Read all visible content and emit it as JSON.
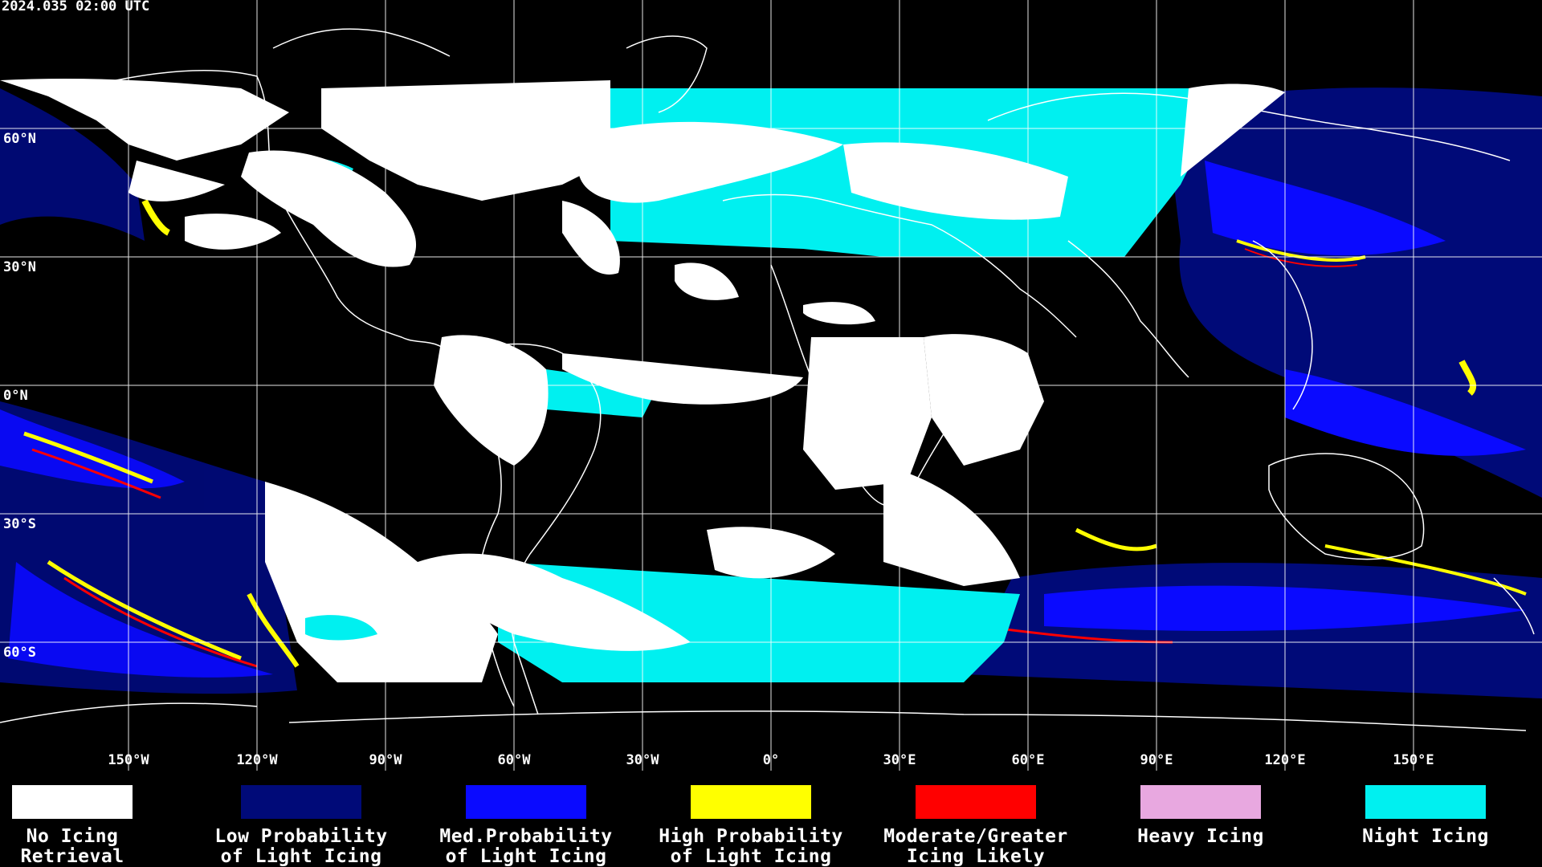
{
  "timestamp": "2024.035 02:00 UTC",
  "lat_labels": [
    "60°N",
    "30°N",
    "0°N",
    "30°S",
    "60°S"
  ],
  "lon_labels": [
    "150°W",
    "120°W",
    "90°W",
    "60°W",
    "30°W",
    "0°",
    "30°E",
    "60°E",
    "90°E",
    "120°E",
    "150°E"
  ],
  "legend": [
    {
      "line1": "No Icing",
      "line2": "Retrieval",
      "color": "#ffffff"
    },
    {
      "line1": "Low Probability",
      "line2": "of Light Icing",
      "color": "#000a78"
    },
    {
      "line1": "Med.Probability",
      "line2": "of Light Icing",
      "color": "#0a0aff"
    },
    {
      "line1": "High Probability",
      "line2": "of Light Icing",
      "color": "#ffff00"
    },
    {
      "line1": "Moderate/Greater",
      "line2": "Icing Likely",
      "color": "#ff0000"
    },
    {
      "line1": "Heavy Icing",
      "line2": "",
      "color": "#e8a8e0"
    },
    {
      "line1": "Night Icing",
      "line2": "",
      "color": "#00f0f0"
    }
  ],
  "colors": {
    "background": "#000000",
    "gridline": "#ffffff",
    "coastline": "#ffffff",
    "no_icing": "#ffffff",
    "night_icing": "#00f0f0",
    "low_prob": "#000a78",
    "med_prob": "#0a0aff",
    "high_prob": "#ffff00",
    "moderate": "#ff0000"
  }
}
